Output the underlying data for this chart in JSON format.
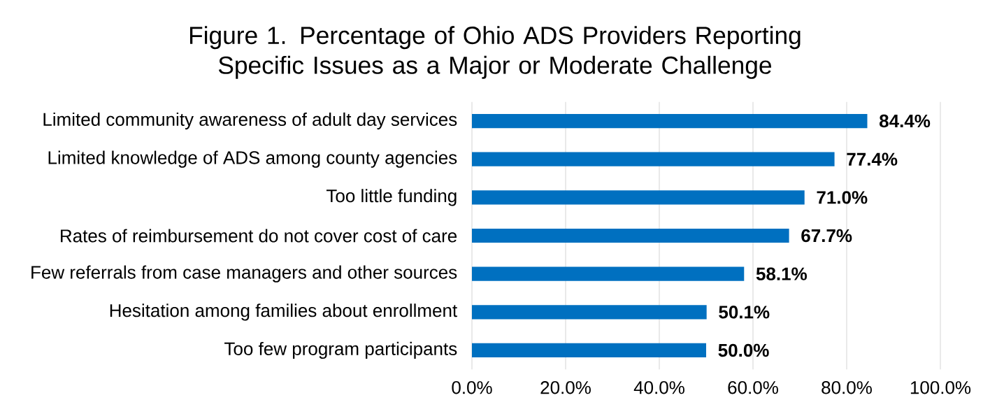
{
  "chart_data": {
    "type": "bar",
    "orientation": "horizontal",
    "title": "Figure 1. Percentage of Ohio ADS Providers Reporting Specific Issues as a Major or Moderate Challenge",
    "categories": [
      "Limited community awareness of adult day services",
      "Limited knowledge of ADS among county agencies",
      "Too little funding",
      "Rates of reimbursement do not cover cost of care",
      "Few referrals from case managers and other sources",
      "Hesitation among families about enrollment",
      "Too few program participants"
    ],
    "values": [
      84.4,
      77.4,
      71.0,
      67.7,
      58.1,
      50.1,
      50.0
    ],
    "value_labels": [
      "84.4%",
      "77.4%",
      "71.0%",
      "67.7%",
      "58.1%",
      "50.1%",
      "50.0%"
    ],
    "color": "#0070c0",
    "xlim": [
      0,
      100
    ],
    "xticks": [
      {
        "value": 0,
        "label": "0.0%"
      },
      {
        "value": 20,
        "label": "20.0%"
      },
      {
        "value": 40,
        "label": "40.0%"
      },
      {
        "value": 60,
        "label": "60.0%"
      },
      {
        "value": 80,
        "label": "80.0%"
      },
      {
        "value": 100,
        "label": "100.0%"
      }
    ],
    "grid": "x"
  }
}
